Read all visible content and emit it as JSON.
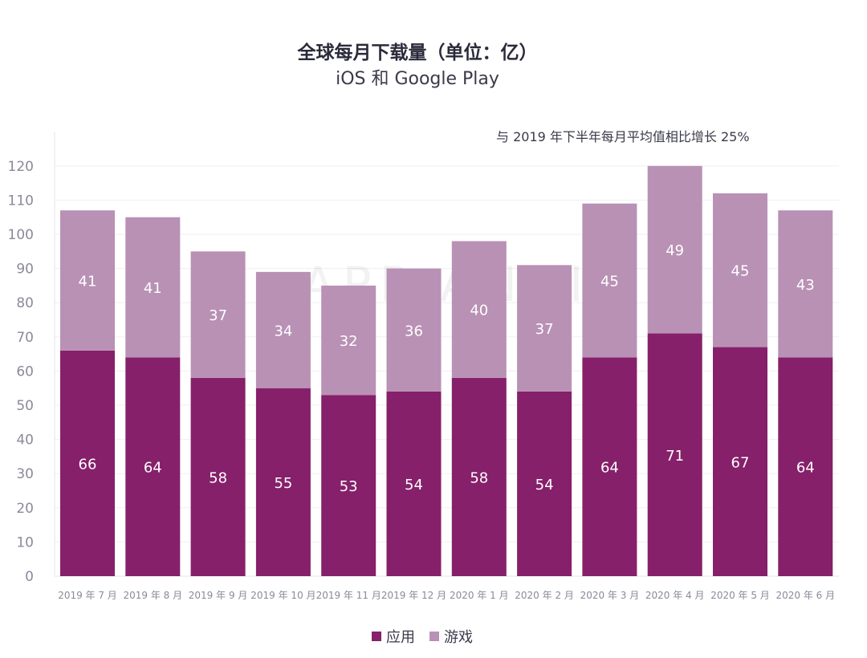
{
  "chart_data": {
    "type": "bar",
    "stacked": true,
    "title": "全球每月下载量（单位：亿）",
    "subtitle": "iOS 和 Google Play",
    "annotation": "与 2019 年下半年每月平均值相比增长 25%",
    "watermark": "APP ANNIE",
    "categories": [
      "2019 年 7 月",
      "2019 年 8 月",
      "2019 年 9 月",
      "2019 年 10 月",
      "2019 年 11 月",
      "2019 年 12 月",
      "2020 年 1 月",
      "2020 年 2 月",
      "2020 年 3 月",
      "2020 年 4 月",
      "2020 年 5 月",
      "2020 年 6 月"
    ],
    "series": [
      {
        "name": "应用",
        "color": "#86206a",
        "values": [
          66,
          64,
          58,
          55,
          53,
          54,
          58,
          54,
          64,
          71,
          67,
          64
        ]
      },
      {
        "name": "游戏",
        "color": "#b991b5",
        "values": [
          41,
          41,
          37,
          34,
          32,
          36,
          40,
          37,
          45,
          49,
          45,
          43
        ]
      }
    ],
    "ylim": [
      0,
      130
    ],
    "yticks": [
      0,
      10,
      20,
      30,
      40,
      50,
      60,
      70,
      80,
      90,
      100,
      110,
      120
    ],
    "grid": true,
    "legend_position": "bottom"
  }
}
